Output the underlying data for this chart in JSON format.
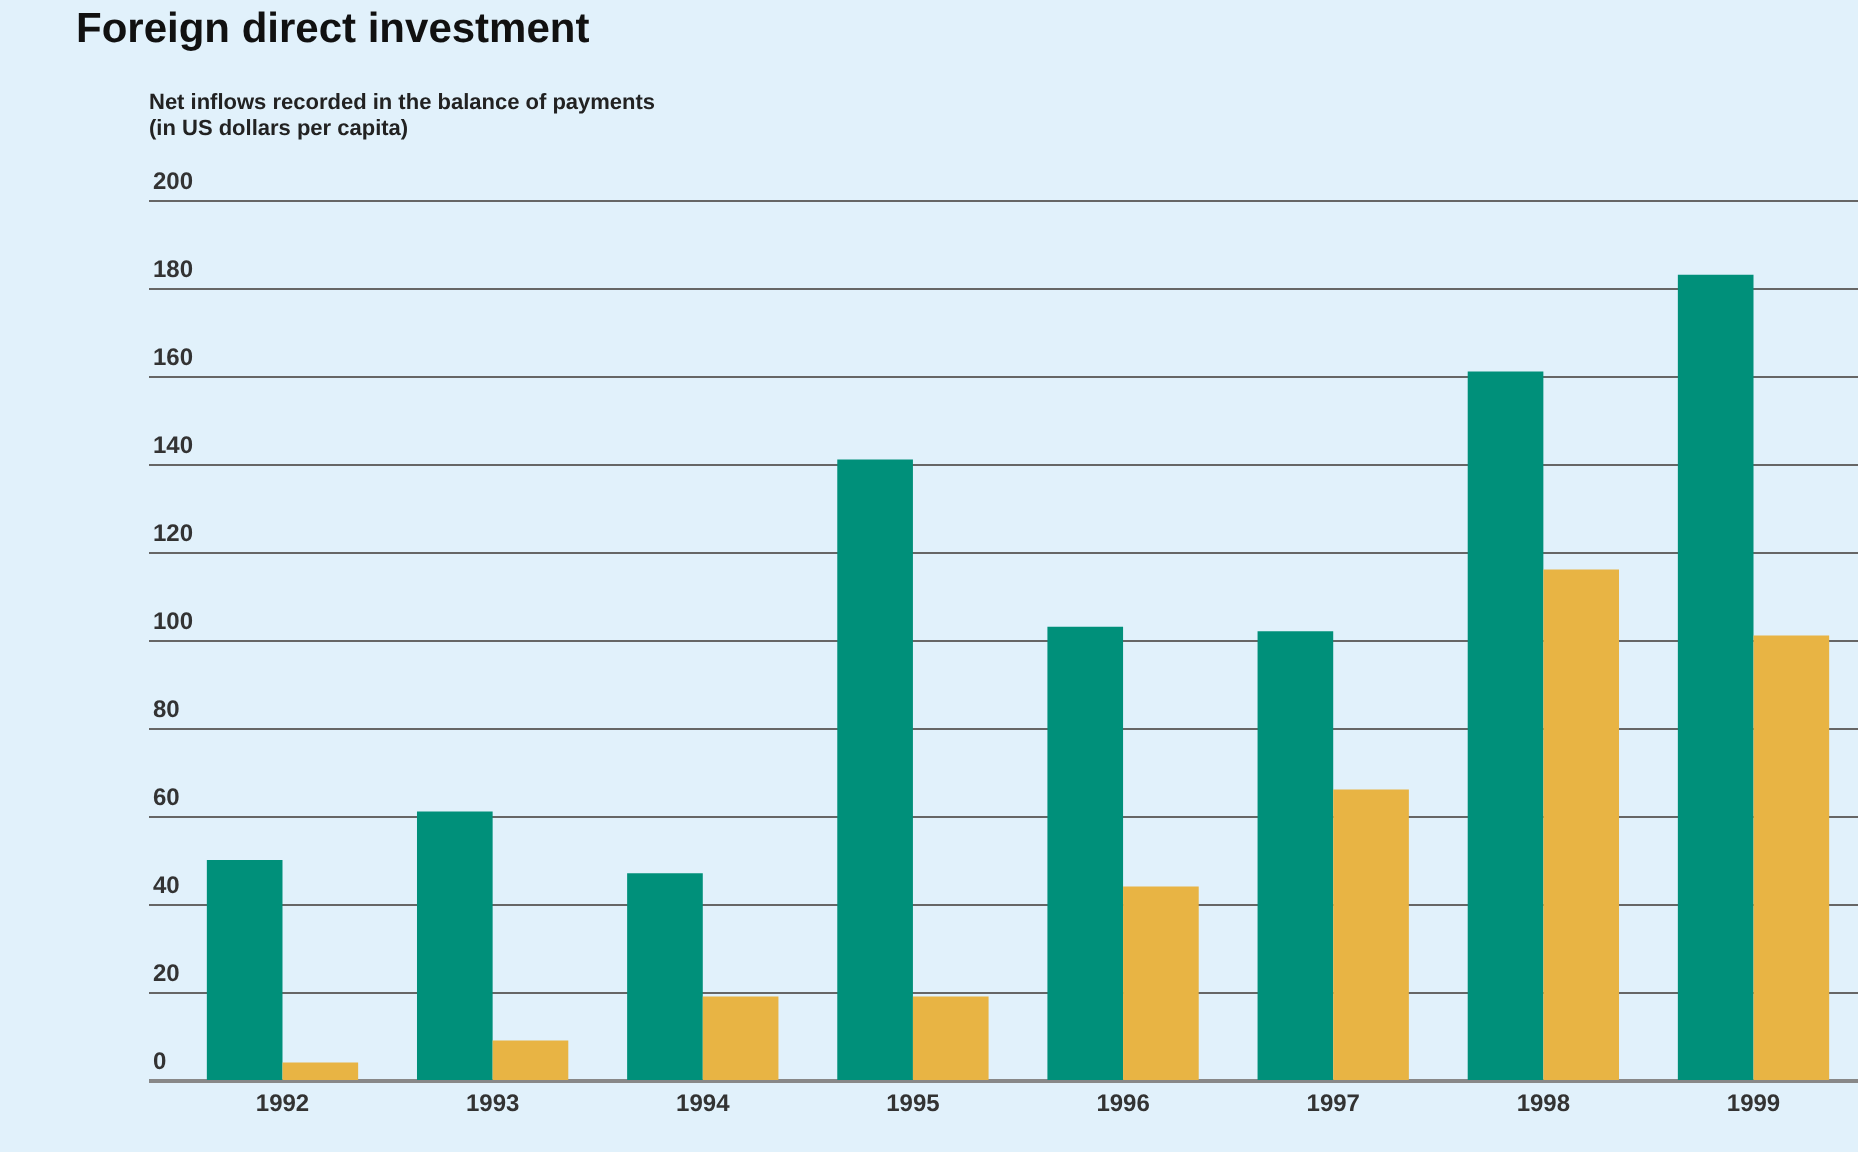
{
  "chart_data": {
    "type": "bar",
    "title": "Foreign direct investment",
    "ylabel": "Net inflows recorded in the balance of payments\n(in US dollars per capita)",
    "categories": [
      "1992",
      "1993",
      "1994",
      "1995",
      "1996",
      "1997",
      "1998",
      "1999"
    ],
    "series": [
      {
        "color": "#00907a",
        "values": [
          50,
          61,
          47,
          141,
          103,
          102,
          161,
          183
        ]
      },
      {
        "color": "#e8b444",
        "values": [
          4,
          9,
          19,
          19,
          44,
          66,
          116,
          101
        ]
      }
    ],
    "ylim": [
      0,
      200
    ],
    "yticks": [
      0,
      20,
      40,
      60,
      80,
      100,
      120,
      140,
      160,
      180,
      200
    ],
    "grid": true,
    "legend": false
  }
}
